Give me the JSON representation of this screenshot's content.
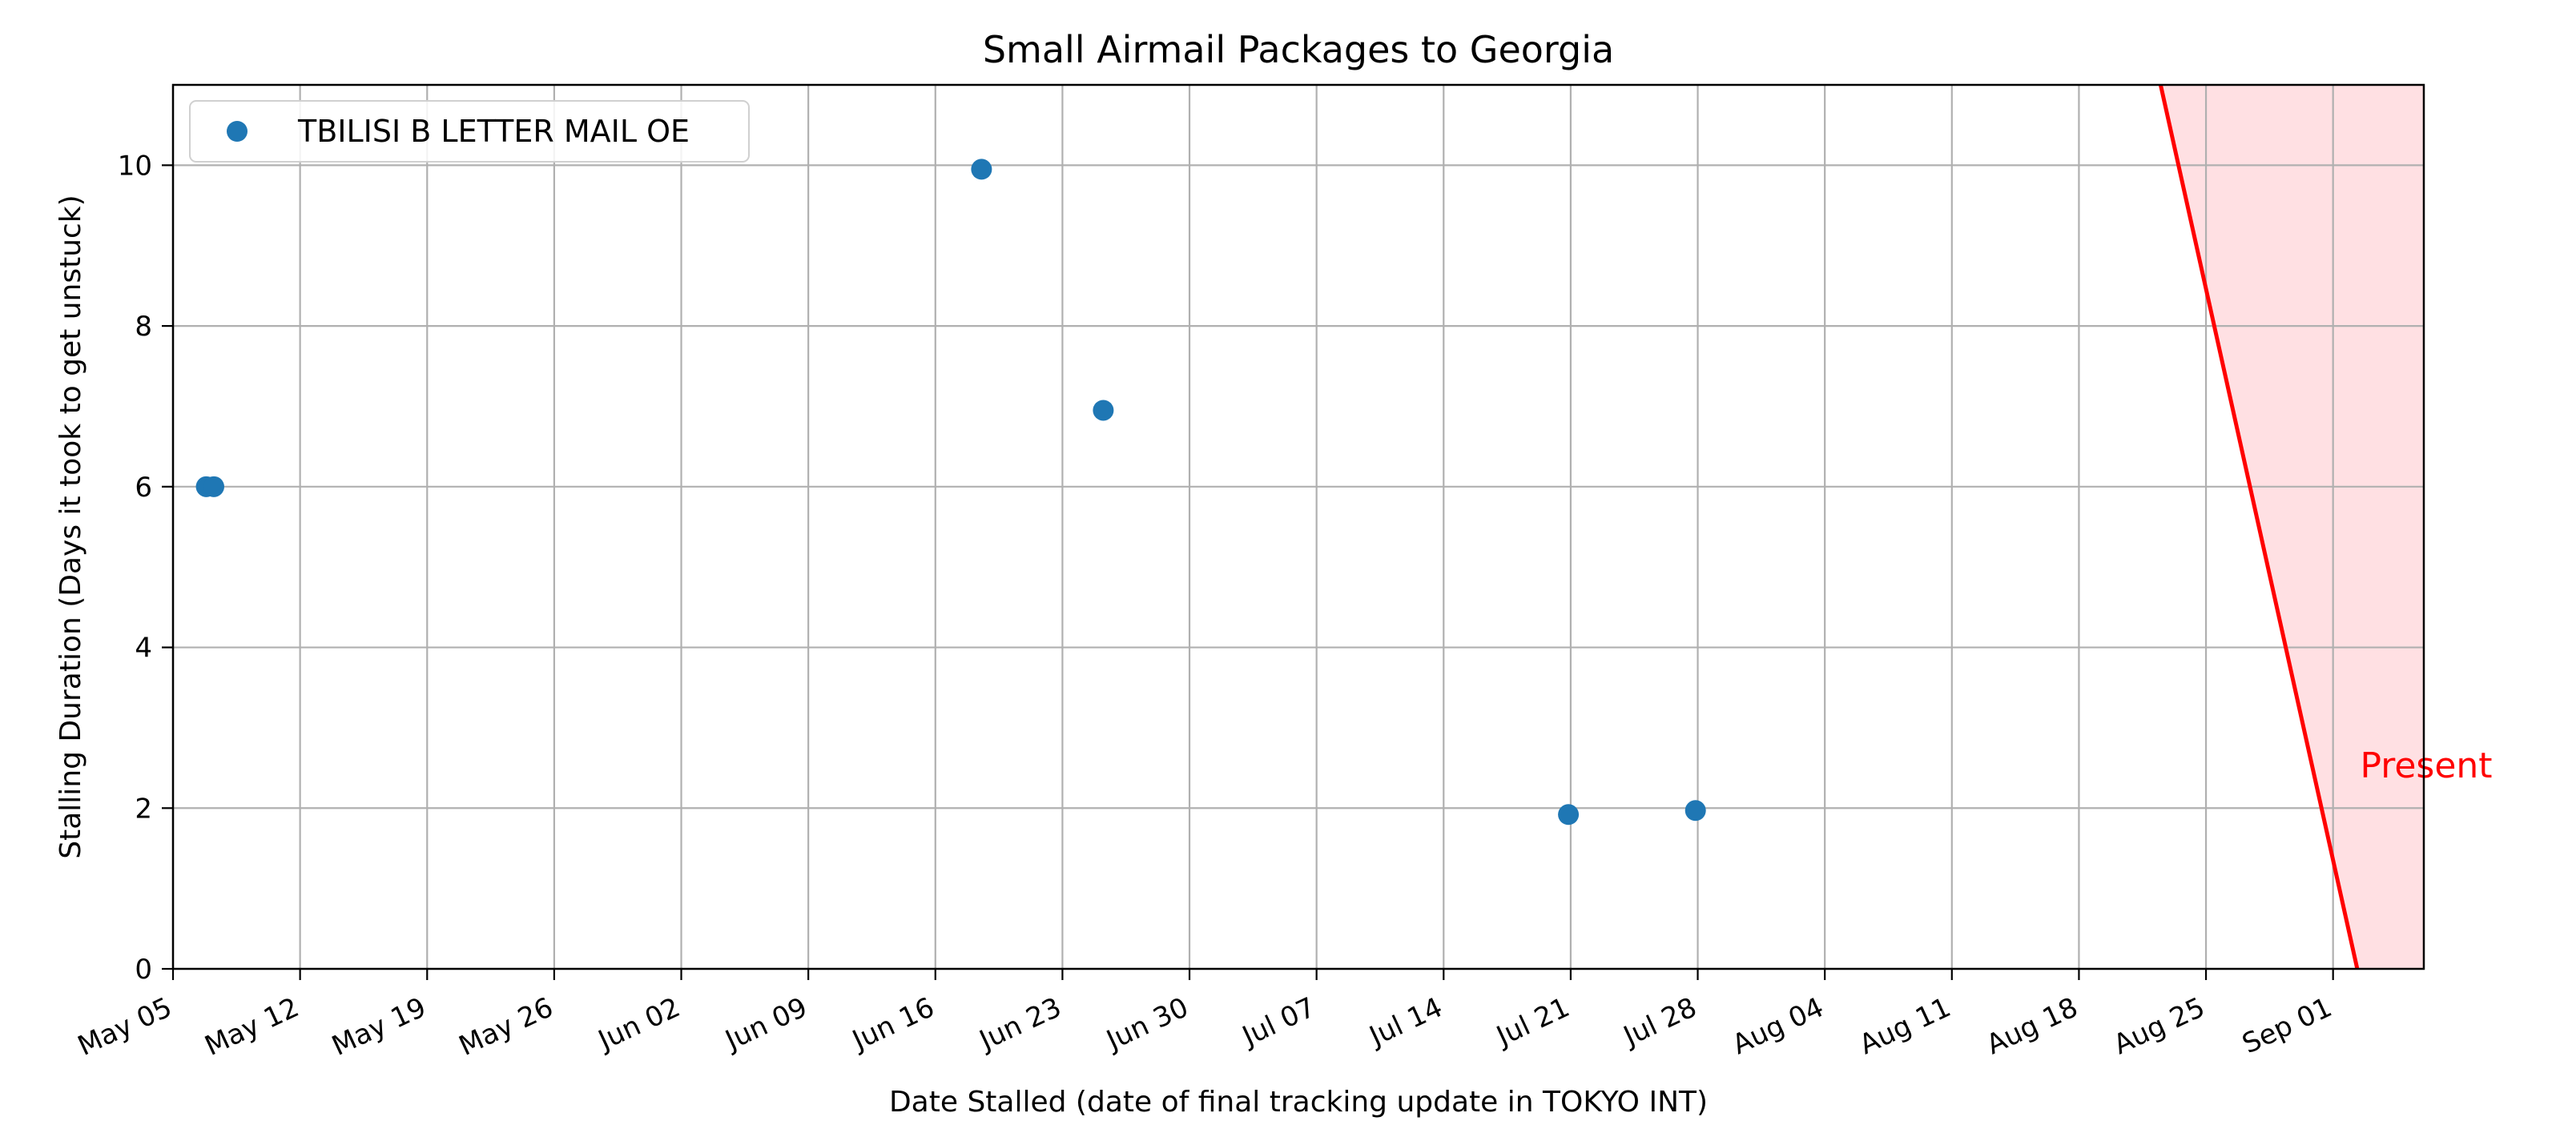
{
  "chart_data": {
    "type": "scatter",
    "title": "Small Airmail Packages to Georgia",
    "xlabel": "Date Stalled (date of final tracking update in TOKYO INT)",
    "ylabel": "Stalling Duration (Days it took to get unstuck)",
    "xlim": [
      "2024-05-05",
      "2024-09-06"
    ],
    "ylim": [
      0,
      11
    ],
    "x_ticks": [
      "2024-05-05",
      "2024-05-12",
      "2024-05-19",
      "2024-05-26",
      "2024-06-02",
      "2024-06-09",
      "2024-06-16",
      "2024-06-23",
      "2024-06-30",
      "2024-07-07",
      "2024-07-14",
      "2024-07-21",
      "2024-07-28",
      "2024-08-04",
      "2024-08-11",
      "2024-08-18",
      "2024-08-25",
      "2024-09-01"
    ],
    "x_tick_labels": [
      "May 05",
      "May 12",
      "May 19",
      "May 26",
      "Jun 02",
      "Jun 09",
      "Jun 16",
      "Jun 23",
      "Jun 30",
      "Jul 07",
      "Jul 14",
      "Jul 21",
      "Jul 28",
      "Aug 04",
      "Aug 11",
      "Aug 18",
      "Aug 25",
      "Sep 01"
    ],
    "y_ticks": [
      0,
      2,
      4,
      6,
      8,
      10
    ],
    "y_tick_labels": [
      "0",
      "2",
      "4",
      "6",
      "8",
      "10"
    ],
    "grid": true,
    "legend_position": "top-left",
    "series": [
      {
        "name": "TBILISI B LETTER MAIL OE",
        "color": "#1f77b4",
        "points": [
          {
            "x": "2024-05-06T20:00",
            "y": 6
          },
          {
            "x": "2024-05-07T06:00",
            "y": 6
          },
          {
            "x": "2024-06-18T13:00",
            "y": 9.95
          },
          {
            "x": "2024-06-25T06:00",
            "y": 6.95
          },
          {
            "x": "2024-07-20T21:00",
            "y": 1.92
          },
          {
            "x": "2024-07-27T21:00",
            "y": 1.97
          }
        ]
      }
    ],
    "present_line": {
      "label": "Present",
      "color": "#ff0000",
      "fill_color": "#ffe0e3",
      "x_top": "2024-08-22T12:00",
      "x_bottom": "2024-09-02T08:00"
    }
  }
}
